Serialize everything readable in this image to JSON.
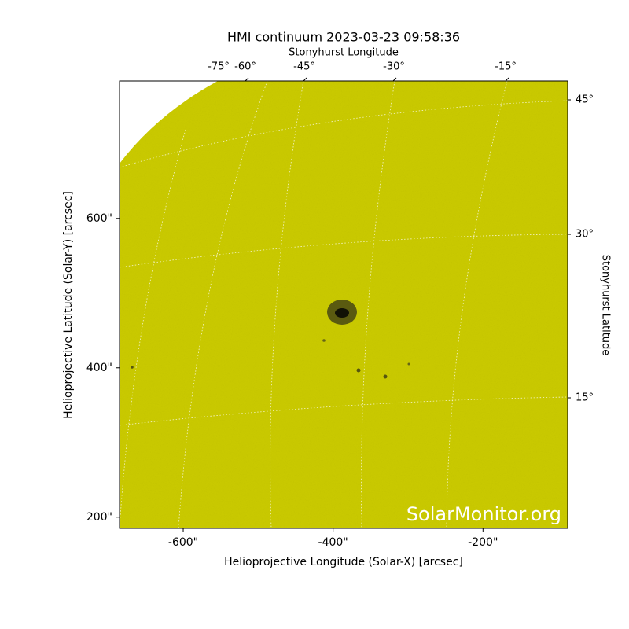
{
  "chart_data": {
    "type": "image",
    "title": "HMI continuum 2023-03-23 09:58:36",
    "x_label": "Helioprojective Longitude (Solar-X) [arcsec]",
    "y_label": "Helioprojective Latitude (Solar-Y) [arcsec]",
    "top_label": "Stonyhurst Longitude",
    "right_label": "Stonyhurst Latitude",
    "xlim": [
      -685,
      -87
    ],
    "ylim": [
      185,
      784
    ],
    "xticks": [
      {
        "value": -600,
        "label": "-600\""
      },
      {
        "value": -400,
        "label": "-400\""
      },
      {
        "value": -200,
        "label": "-200\""
      }
    ],
    "yticks": [
      {
        "value": 200,
        "label": "200\""
      },
      {
        "value": 400,
        "label": "400\""
      },
      {
        "value": 600,
        "label": "600\""
      }
    ],
    "top_ticks": [
      {
        "value": -75,
        "label": "-75°"
      },
      {
        "value": -60,
        "label": "-60°"
      },
      {
        "value": -45,
        "label": "-45°"
      },
      {
        "value": -30,
        "label": "-30°"
      },
      {
        "value": -15,
        "label": "-15°"
      }
    ],
    "right_ticks": [
      {
        "value": 45,
        "label": "45°"
      },
      {
        "value": 30,
        "label": "30°"
      },
      {
        "value": 15,
        "label": "15°"
      }
    ],
    "watermark": "SolarMonitor.org",
    "color": "#c9c900"
  }
}
